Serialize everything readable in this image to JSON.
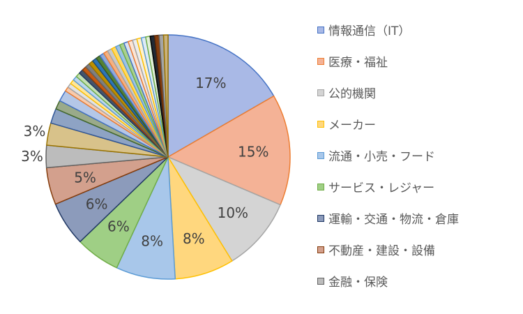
{
  "chart_data": {
    "type": "pie",
    "title": "",
    "slices": [
      {
        "name": "情報通信（IT）",
        "value": 17,
        "label": "17%",
        "color": "#a9b9e6",
        "edge": "#4472c4"
      },
      {
        "name": "医療・福祉",
        "value": 15,
        "label": "15%",
        "color": "#f4b296",
        "edge": "#ed7d31"
      },
      {
        "name": "公的機関",
        "value": 10,
        "label": "10%",
        "color": "#d4d4d4",
        "edge": "#a5a5a5"
      },
      {
        "name": "メーカー",
        "value": 8,
        "label": "8%",
        "color": "#ffd77e",
        "edge": "#ffc000"
      },
      {
        "name": "流通・小売・フード",
        "value": 8,
        "label": "8%",
        "color": "#a8c7ea",
        "edge": "#5b9bd5"
      },
      {
        "name": "サービス・レジャー",
        "value": 6,
        "label": "6%",
        "color": "#9fcf85",
        "edge": "#70ad47"
      },
      {
        "name": "運輸・交通・物流・倉庫",
        "value": 6,
        "label": "6%",
        "color": "#8c9bbb",
        "edge": "#203864"
      },
      {
        "name": "不動産・建設・設備",
        "value": 5,
        "label": "5%",
        "color": "#d3a08d",
        "edge": "#843c0c"
      },
      {
        "name": "金融・保険",
        "value": 3,
        "label": "3%",
        "color": "#bcbcbc",
        "edge": "#636363"
      },
      {
        "name": "",
        "value": 3,
        "label": "3%",
        "color": "#d8c28a",
        "edge": "#997300"
      },
      {
        "name": "",
        "value": 2,
        "label": "",
        "color": "#8ea3c4",
        "edge": "#2f5597"
      },
      {
        "name": "",
        "value": 1.2,
        "label": "",
        "color": "#9aaa8a",
        "edge": "#43682b"
      },
      {
        "name": "",
        "value": 1.5,
        "label": "",
        "color": "#b4c7e7",
        "edge": "#4472c4"
      },
      {
        "name": "",
        "value": 0.6,
        "label": "",
        "color": "#f8cbad",
        "edge": "#ed7d31"
      },
      {
        "name": "",
        "value": 0.6,
        "label": "",
        "color": "#e3e3e3",
        "edge": "#a5a5a5"
      },
      {
        "name": "",
        "value": 0.6,
        "label": "",
        "color": "#ffe699",
        "edge": "#ffc000"
      },
      {
        "name": "",
        "value": 0.6,
        "label": "",
        "color": "#bdd7ee",
        "edge": "#5b9bd5"
      },
      {
        "name": "",
        "value": 0.6,
        "label": "",
        "color": "#c5e0b4",
        "edge": "#70ad47"
      },
      {
        "name": "",
        "value": 0.6,
        "label": "",
        "color": "#44546a",
        "edge": "#203864"
      },
      {
        "name": "",
        "value": 0.6,
        "label": "",
        "color": "#c55a11",
        "edge": "#843c0c"
      },
      {
        "name": "",
        "value": 0.6,
        "label": "",
        "color": "#7f7f7f",
        "edge": "#636363"
      },
      {
        "name": "",
        "value": 0.6,
        "label": "",
        "color": "#bf9000",
        "edge": "#997300"
      },
      {
        "name": "",
        "value": 0.6,
        "label": "",
        "color": "#2e75b6",
        "edge": "#1f4e79"
      },
      {
        "name": "",
        "value": 0.6,
        "label": "",
        "color": "#548235",
        "edge": "#385723"
      },
      {
        "name": "",
        "value": 0.6,
        "label": "",
        "color": "#8faadc",
        "edge": "#4472c4"
      },
      {
        "name": "",
        "value": 0.6,
        "label": "",
        "color": "#f4b183",
        "edge": "#ed7d31"
      },
      {
        "name": "",
        "value": 0.6,
        "label": "",
        "color": "#c9c9c9",
        "edge": "#a5a5a5"
      },
      {
        "name": "",
        "value": 0.6,
        "label": "",
        "color": "#ffd966",
        "edge": "#ffc000"
      },
      {
        "name": "",
        "value": 0.6,
        "label": "",
        "color": "#9dc3e6",
        "edge": "#5b9bd5"
      },
      {
        "name": "",
        "value": 0.6,
        "label": "",
        "color": "#a9d18e",
        "edge": "#70ad47"
      },
      {
        "name": "",
        "value": 0.6,
        "label": "",
        "color": "#dae3f3",
        "edge": "#4472c4"
      },
      {
        "name": "",
        "value": 0.6,
        "label": "",
        "color": "#fbe5d6",
        "edge": "#ed7d31"
      },
      {
        "name": "",
        "value": 0.6,
        "label": "",
        "color": "#ededed",
        "edge": "#a5a5a5"
      },
      {
        "name": "",
        "value": 0.6,
        "label": "",
        "color": "#fff2cc",
        "edge": "#ffc000"
      },
      {
        "name": "",
        "value": 0.6,
        "label": "",
        "color": "#deebf7",
        "edge": "#5b9bd5"
      },
      {
        "name": "",
        "value": 0.6,
        "label": "",
        "color": "#e2f0d9",
        "edge": "#70ad47"
      },
      {
        "name": "",
        "value": 0.6,
        "label": "",
        "color": "#222a35",
        "edge": "#000000"
      },
      {
        "name": "",
        "value": 0.6,
        "label": "",
        "color": "#843c0c",
        "edge": "#5a2808"
      },
      {
        "name": "",
        "value": 0.6,
        "label": "",
        "color": "#a5a5a5",
        "edge": "#636363"
      },
      {
        "name": "",
        "value": 0.6,
        "label": "",
        "color": "#c9b27c",
        "edge": "#997300"
      }
    ],
    "legend": {
      "position": "right",
      "entries": [
        "情報通信（IT）",
        "医療・福祉",
        "公的機関",
        "メーカー",
        "流通・小売・フード",
        "サービス・レジャー",
        "運輸・交通・物流・倉庫",
        "不動産・建設・設備",
        "金融・保険"
      ]
    },
    "label_colors": {
      "inside": "#404040",
      "outside": "#404040"
    }
  }
}
